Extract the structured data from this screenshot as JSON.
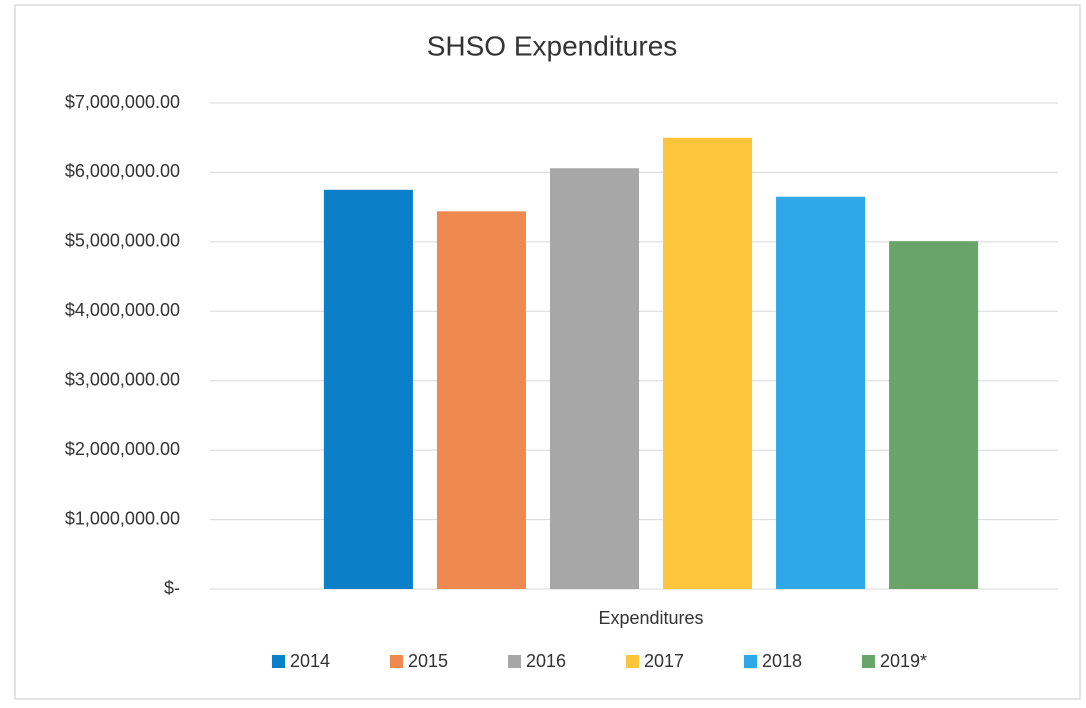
{
  "chart_data": {
    "type": "bar",
    "title": "SHSO Expenditures",
    "categories": [
      "Expenditures"
    ],
    "series": [
      {
        "name": "2014",
        "color": "#0b7fc7",
        "values": [
          5750000
        ]
      },
      {
        "name": "2015",
        "color": "#ee8a4f",
        "values": [
          5440000
        ]
      },
      {
        "name": "2016",
        "color": "#a7a7a7",
        "values": [
          6060000
        ]
      },
      {
        "name": "2017",
        "color": "#fcc53c",
        "values": [
          6500000
        ]
      },
      {
        "name": "2018",
        "color": "#2fa8e8",
        "values": [
          5650000
        ]
      },
      {
        "name": "2019*",
        "color": "#69a569",
        "values": [
          5010000
        ]
      }
    ],
    "ylim": [
      0,
      7000000
    ],
    "yticks": [
      {
        "value": 0,
        "label": "$-"
      },
      {
        "value": 1000000,
        "label": "$1,000,000.00"
      },
      {
        "value": 2000000,
        "label": "$2,000,000.00"
      },
      {
        "value": 3000000,
        "label": "$3,000,000.00"
      },
      {
        "value": 4000000,
        "label": "$4,000,000.00"
      },
      {
        "value": 5000000,
        "label": "$5,000,000.00"
      },
      {
        "value": 6000000,
        "label": "$6,000,000.00"
      },
      {
        "value": 7000000,
        "label": "$7,000,000.00"
      }
    ],
    "grid": true,
    "legend": "bottom"
  }
}
